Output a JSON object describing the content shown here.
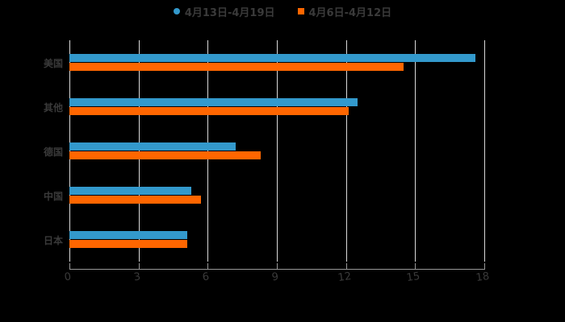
{
  "legend": [
    {
      "label": "4月13日-4月19日",
      "color": "#3399cc",
      "marker": "circle"
    },
    {
      "label": "4月6日-4月12日",
      "color": "#ff6600",
      "marker": "square"
    }
  ],
  "chart_data": {
    "type": "bar",
    "orientation": "horizontal",
    "title": "",
    "xlabel": "",
    "ylabel": "",
    "categories": [
      "美国",
      "其他",
      "德国",
      "中国",
      "日本"
    ],
    "series": [
      {
        "name": "4月13日-4月19日",
        "color": "#3399cc",
        "values": [
          17.6,
          12.5,
          7.2,
          5.3,
          5.1
        ]
      },
      {
        "name": "4月6日-4月12日",
        "color": "#ff6600",
        "values": [
          14.5,
          12.1,
          8.3,
          5.7,
          5.1
        ]
      }
    ],
    "xlim": [
      0,
      18
    ],
    "xticks": [
      "0",
      "3",
      "6",
      "9",
      "12",
      "15",
      "18"
    ],
    "grid": true,
    "legend_position": "top"
  }
}
